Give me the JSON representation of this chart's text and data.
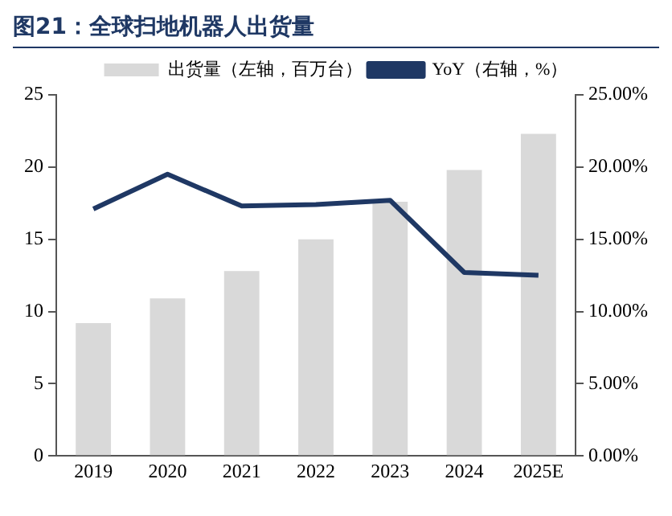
{
  "chart_data": {
    "type": "bar",
    "title": "图21：全球扫地机器人出货量",
    "categories": [
      "2019",
      "2020",
      "2021",
      "2022",
      "2023",
      "2024",
      "2025E"
    ],
    "series": [
      {
        "name": "出货量（左轴，百万台）",
        "color": "#d9d9d9",
        "values": [
          9.2,
          10.9,
          12.8,
          15.0,
          17.6,
          19.8,
          22.3
        ]
      },
      {
        "name": "YoY（右轴，%）",
        "type": "line",
        "axis": "y2",
        "color": "#1f3864",
        "values": [
          17.1,
          19.5,
          17.3,
          17.4,
          17.7,
          12.7,
          12.5
        ]
      }
    ],
    "ylim": [
      0,
      25
    ],
    "yticks": [
      0,
      5,
      10,
      15,
      20,
      25
    ],
    "y2lim": [
      0,
      25
    ],
    "y2ticks": [
      {
        "value": 0,
        "label": "0.00%"
      },
      {
        "value": 5,
        "label": "5.00%"
      },
      {
        "value": 10,
        "label": "10.00%"
      },
      {
        "value": 15,
        "label": "15.00%"
      },
      {
        "value": 20,
        "label": "20.00%"
      },
      {
        "value": 25,
        "label": "25.00%"
      }
    ],
    "legend": "top",
    "grid": false,
    "marker": "none"
  }
}
